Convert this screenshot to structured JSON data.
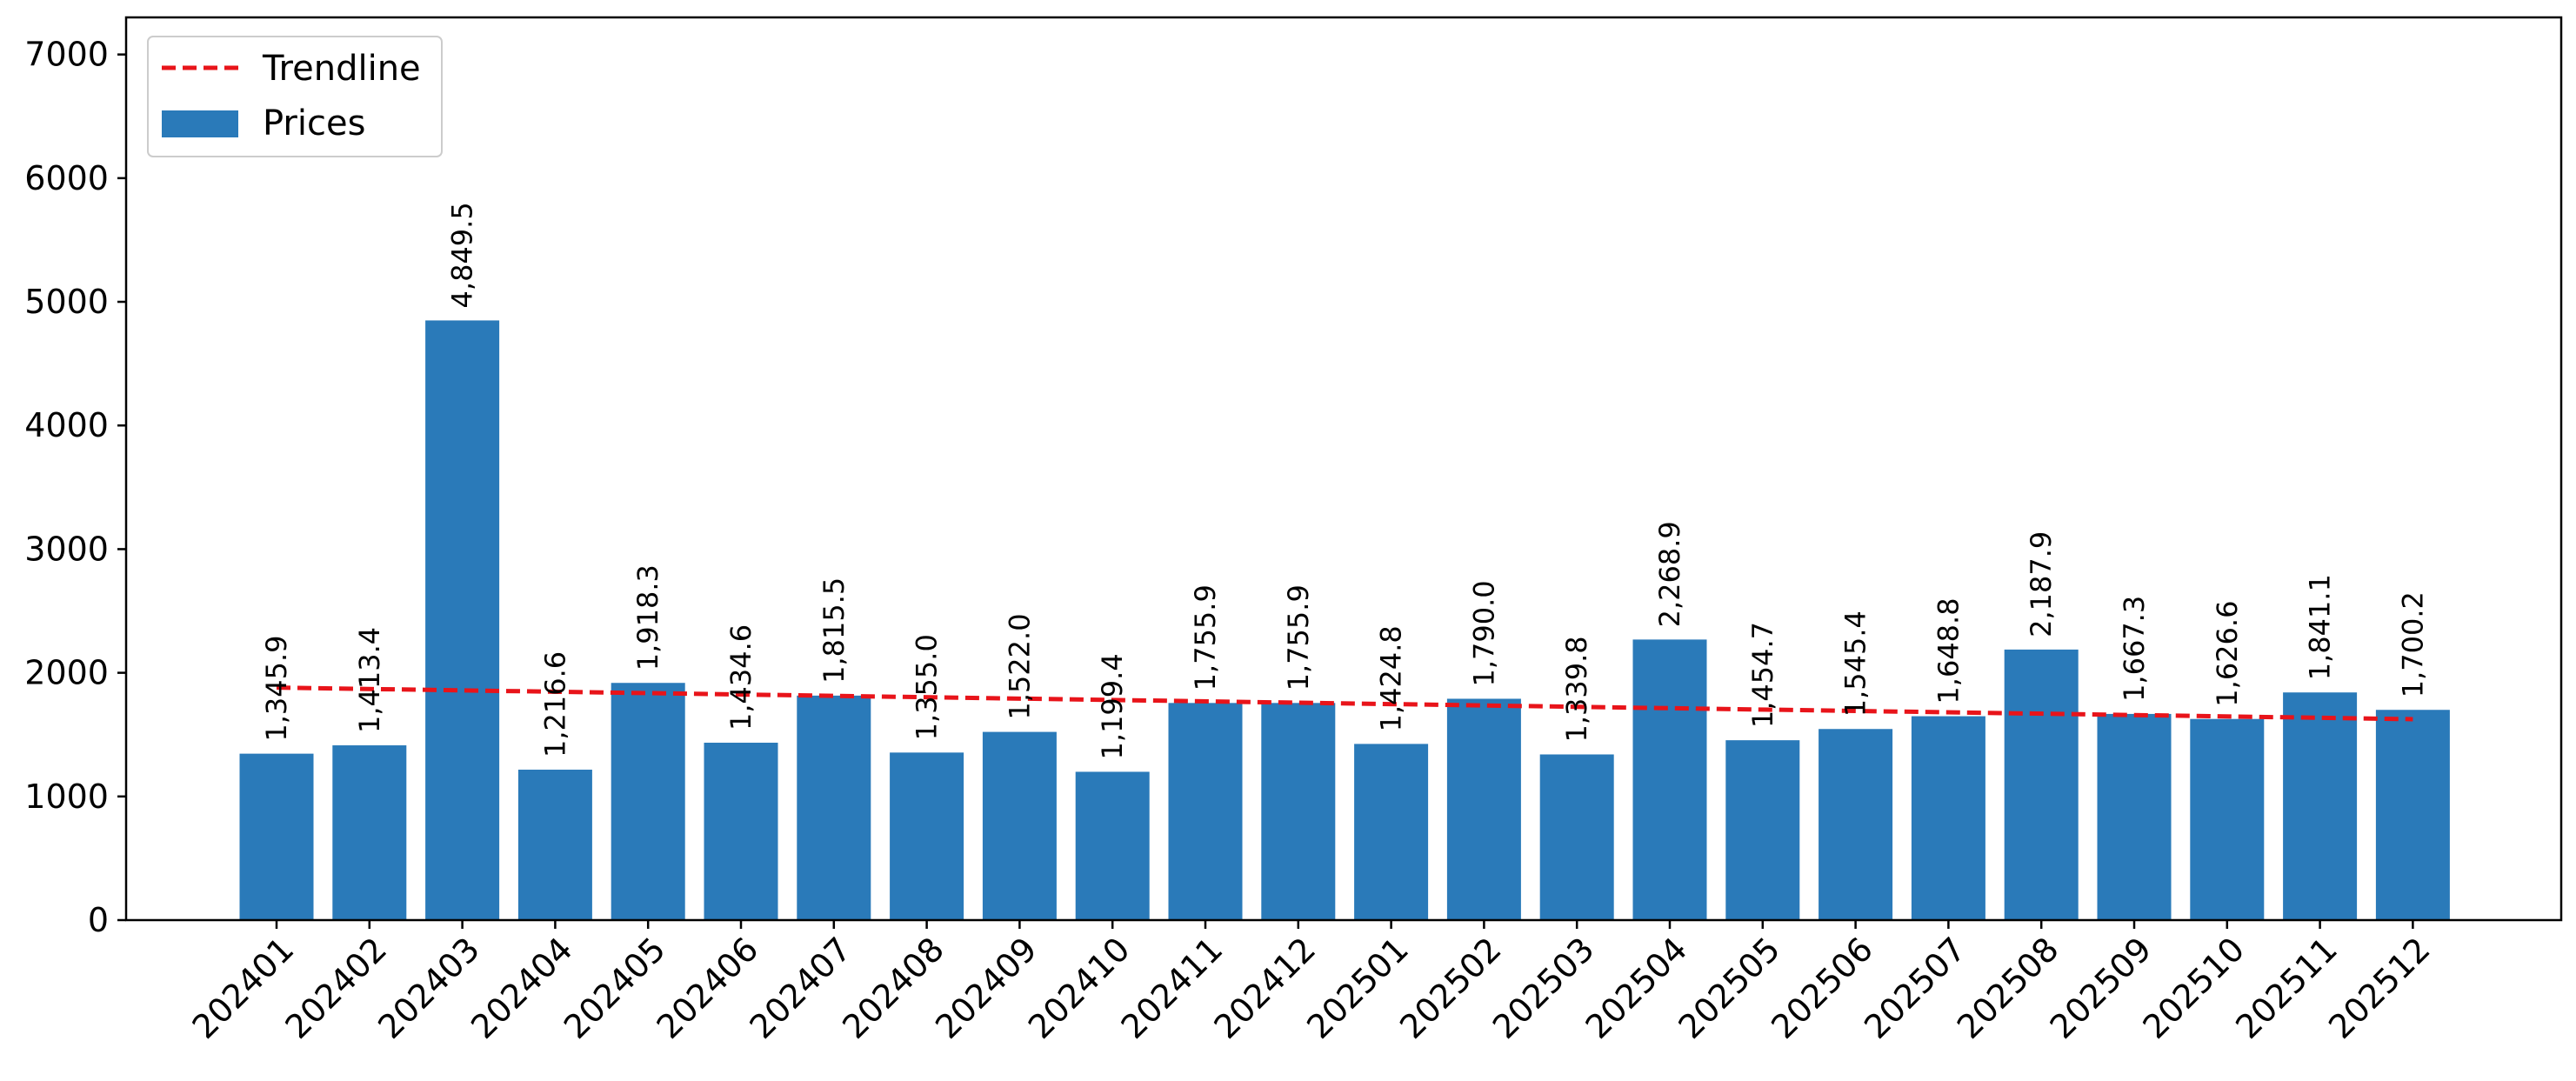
{
  "chart_data": {
    "type": "bar",
    "title": "",
    "xlabel": "",
    "ylabel": "",
    "ylim": [
      0,
      7300
    ],
    "yticks": [
      0,
      1000,
      2000,
      3000,
      4000,
      5000,
      6000,
      7000
    ],
    "grid": false,
    "legend_position": "top-left",
    "categories": [
      "202401",
      "202402",
      "202403",
      "202404",
      "202405",
      "202406",
      "202407",
      "202408",
      "202409",
      "202410",
      "202411",
      "202412",
      "202501",
      "202502",
      "202503",
      "202504",
      "202505",
      "202506",
      "202507",
      "202508",
      "202509",
      "202510",
      "202511",
      "202512"
    ],
    "series": [
      {
        "name": "Prices",
        "type": "bar",
        "color": "#2a7ab9",
        "values": [
          1345.9,
          1413.4,
          4849.5,
          1216.6,
          1918.3,
          1434.6,
          1815.5,
          1355.0,
          1522.0,
          1199.4,
          1755.9,
          1755.9,
          1424.8,
          1790.0,
          1339.8,
          2268.9,
          1454.7,
          1545.4,
          1648.8,
          2187.9,
          1667.3,
          1626.6,
          1841.1,
          1700.2
        ],
        "labels": [
          "1,345.9",
          "1,413.4",
          "4,849.5",
          "1,216.6",
          "1,918.3",
          "1,434.6",
          "1,815.5",
          "1,355.0",
          "1,522.0",
          "1,199.4",
          "1,755.9",
          "1,755.9",
          "1,424.8",
          "1,790.0",
          "1,339.8",
          "2,268.9",
          "1,454.7",
          "1,545.4",
          "1,648.8",
          "2,187.9",
          "1,667.3",
          "1,626.6",
          "1,841.1",
          "1,700.2"
        ]
      },
      {
        "name": "Trendline",
        "type": "line",
        "style": "dashed",
        "color": "#e8141a",
        "start": 1880,
        "end": 1625
      }
    ]
  }
}
